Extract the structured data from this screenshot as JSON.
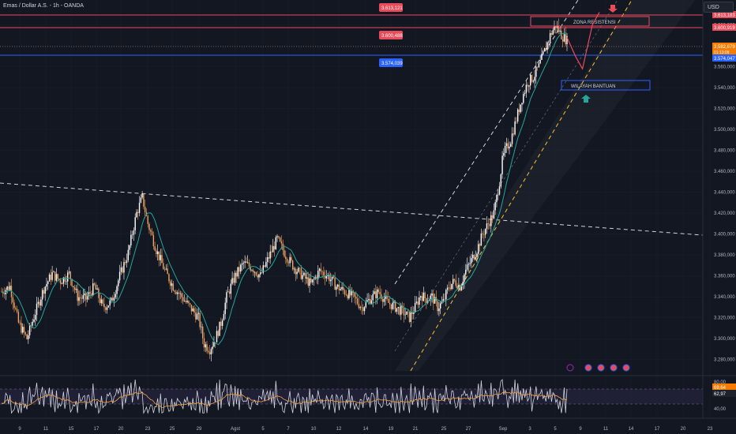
{
  "header": {
    "title": "Emas / Dollar A.S. - 1h - OANDA",
    "currency": "USD"
  },
  "annotations": {
    "resistance": "ZONA RESISTENSI",
    "support": "WILAYAH BANTUAN"
  },
  "colors": {
    "bg": "#131722",
    "grid": "#1c2030",
    "up": "#ffffff",
    "down": "#f0a35e",
    "ma": "#26a69a",
    "resist": "#e84b5a",
    "support": "#2962ff",
    "rsi": "#d1d4dc",
    "rsi_ma": "#f7a545",
    "channel_upper": "#ffffff",
    "channel_lower": "#f9c22e"
  },
  "chart_data": {
    "type": "line",
    "title": "Emas / Dollar A.S. - 1h - OANDA",
    "x_ticks": [
      "9",
      "11",
      "15",
      "17",
      "20",
      "23",
      "25",
      "29",
      "Agst",
      "5",
      "7",
      "10",
      "12",
      "14",
      "19",
      "21",
      "25",
      "27",
      "Sep",
      "3",
      "5",
      "9",
      "11",
      "14",
      "17",
      "20",
      "23"
    ],
    "y_ticks": [
      "3.640,000",
      "3.620,000",
      "3.600,000",
      "3.580,000",
      "3.560,000",
      "3.540,000",
      "3.520,000",
      "3.500,000",
      "3.480,000",
      "3.460,000",
      "3.440,000",
      "3.420,000",
      "3.400,000",
      "3.380,000",
      "3.360,000",
      "3.340,000",
      "3.320,000",
      "3.300,000",
      "3.280,000"
    ],
    "ylim": [
      3270,
      3650
    ],
    "price_labels": {
      "top_box": "3.613,121",
      "mid_box": "3.600,488",
      "blue_box": "3.574,039",
      "axis_top": "3.613,183",
      "axis_resist": "3.600,919",
      "axis_current": "3.582,679",
      "axis_timer": "01:13:09",
      "axis_blue": "3.574,047"
    },
    "levels": {
      "resist_top": 3613.121,
      "resist_low": 3600.488,
      "blue": 3574.039,
      "current": 3582.679
    },
    "price_path_anchors": [
      [
        0,
        3345
      ],
      [
        6,
        3350
      ],
      [
        12,
        3315
      ],
      [
        18,
        3300
      ],
      [
        24,
        3325
      ],
      [
        30,
        3348
      ],
      [
        36,
        3362
      ],
      [
        42,
        3355
      ],
      [
        48,
        3362
      ],
      [
        54,
        3340
      ],
      [
        60,
        3338
      ],
      [
        66,
        3350
      ],
      [
        72,
        3330
      ],
      [
        78,
        3335
      ],
      [
        84,
        3360
      ],
      [
        90,
        3382
      ],
      [
        96,
        3420
      ],
      [
        100,
        3435
      ],
      [
        104,
        3410
      ],
      [
        110,
        3385
      ],
      [
        116,
        3365
      ],
      [
        122,
        3350
      ],
      [
        128,
        3340
      ],
      [
        134,
        3330
      ],
      [
        140,
        3320
      ],
      [
        144,
        3295
      ],
      [
        148,
        3290
      ],
      [
        152,
        3300
      ],
      [
        156,
        3315
      ],
      [
        160,
        3340
      ],
      [
        166,
        3360
      ],
      [
        172,
        3372
      ],
      [
        178,
        3368
      ],
      [
        184,
        3360
      ],
      [
        190,
        3378
      ],
      [
        196,
        3395
      ],
      [
        202,
        3380
      ],
      [
        208,
        3368
      ],
      [
        214,
        3360
      ],
      [
        220,
        3352
      ],
      [
        226,
        3365
      ],
      [
        232,
        3360
      ],
      [
        238,
        3350
      ],
      [
        244,
        3345
      ],
      [
        250,
        3340
      ],
      [
        256,
        3330
      ],
      [
        262,
        3338
      ],
      [
        268,
        3345
      ],
      [
        274,
        3335
      ],
      [
        280,
        3330
      ],
      [
        286,
        3325
      ],
      [
        290,
        3320
      ],
      [
        294,
        3330
      ],
      [
        298,
        3342
      ],
      [
        302,
        3338
      ],
      [
        306,
        3340
      ],
      [
        310,
        3330
      ],
      [
        314,
        3335
      ],
      [
        318,
        3350
      ],
      [
        322,
        3355
      ],
      [
        326,
        3350
      ],
      [
        330,
        3365
      ],
      [
        334,
        3375
      ],
      [
        338,
        3385
      ],
      [
        342,
        3400
      ],
      [
        346,
        3410
      ],
      [
        350,
        3420
      ],
      [
        354,
        3450
      ],
      [
        356,
        3470
      ],
      [
        358,
        3480
      ],
      [
        362,
        3490
      ],
      [
        366,
        3510
      ],
      [
        370,
        3530
      ],
      [
        374,
        3545
      ],
      [
        378,
        3550
      ],
      [
        382,
        3560
      ],
      [
        386,
        3575
      ],
      [
        390,
        3590
      ],
      [
        394,
        3600
      ],
      [
        398,
        3590
      ],
      [
        402,
        3585
      ]
    ],
    "rsi": {
      "ylim": [
        30,
        90
      ],
      "y_ticks": [
        "80,00",
        "40,00"
      ],
      "last": "69,64",
      "ma_last": "62,97"
    },
    "projection": [
      [
        402,
        3588
      ],
      [
        408,
        3570
      ],
      [
        413,
        3558
      ],
      [
        420,
        3600
      ],
      [
        425,
        3612
      ]
    ]
  }
}
